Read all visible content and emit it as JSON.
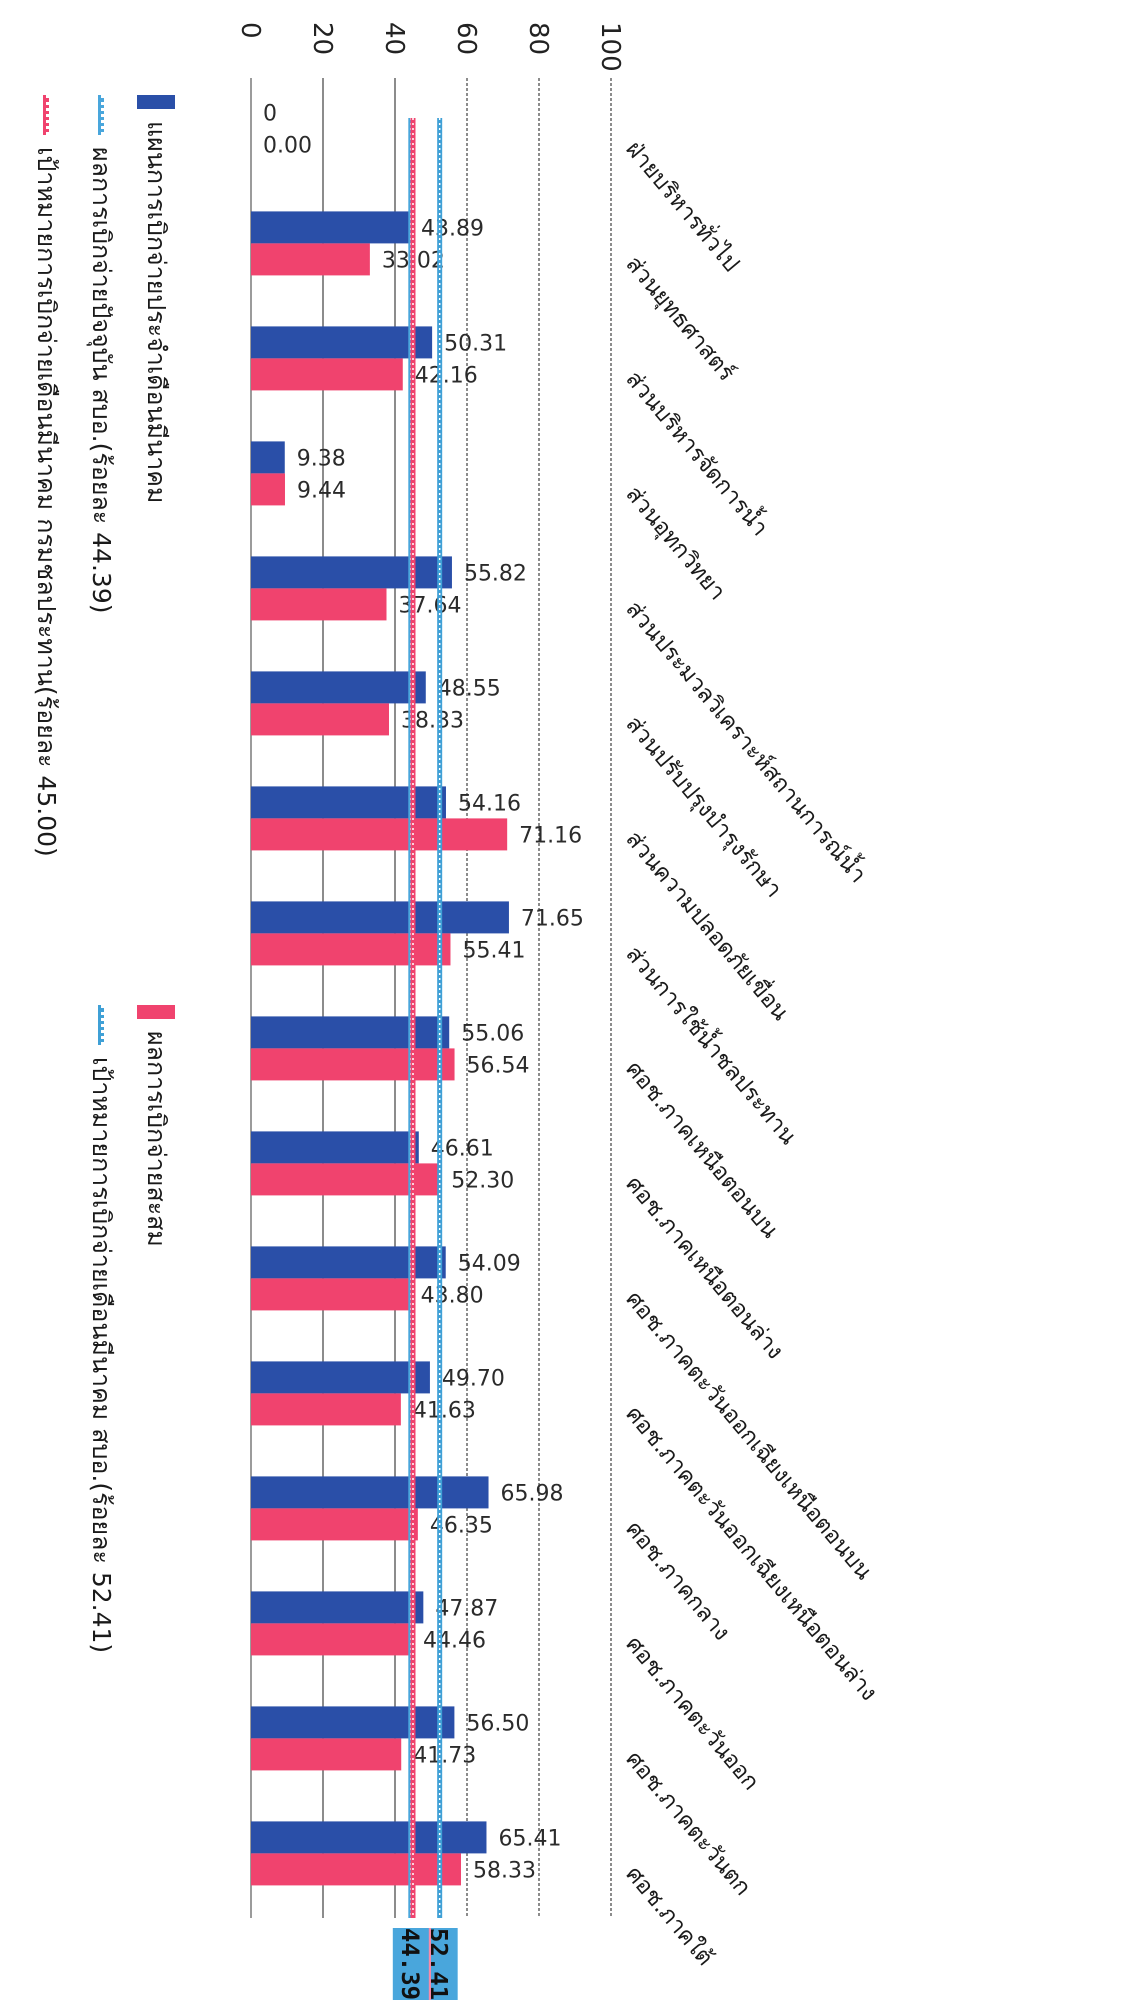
{
  "chart_data": {
    "type": "bar",
    "orientation": "horizontal",
    "categories": [
      "ฝ่ายบริหารทั่วไป",
      "ส่วนยุทธศาสตร์",
      "ส่วนบริหารจัดการน้ำ",
      "ส่วนอุทกวิทยา",
      "ส่วนประมวลวิเคราะห์สถานการณ์น้ำ",
      "ส่วนปรับปรุงบำรุงรักษา",
      "ส่วนความปลอดภัยเขื่อน",
      "ส่วนการใช้น้ำชลประทาน",
      "ศอช.ภาคเหนือตอนบน",
      "ศอช.ภาคเหนือตอนล่าง",
      "ศอช.ภาคตะวันออกเฉียงเหนือตอนบน",
      "ศอช.ภาคตะวันออกเฉียงเหนือตอนล่าง",
      "ศอช.ภาคกลาง",
      "ศอช.ภาคตะวันออก",
      "ศอช.ภาคตะวันตก",
      "ศอช.ภาคใต้"
    ],
    "series": [
      {
        "name": "แผนการเบิกจ่ายประจำเดือนมีนาคม",
        "color": "#2a4fa8",
        "values": [
          0,
          43.89,
          50.31,
          9.38,
          55.82,
          48.55,
          54.16,
          71.65,
          55.06,
          46.61,
          54.09,
          49.7,
          65.98,
          47.87,
          56.5,
          65.41
        ],
        "labels": [
          "0",
          "43.89",
          "50.31",
          "9.38",
          "55.82",
          "48.55",
          "54.16",
          "71.65",
          "55.06",
          "46.61",
          "54.09",
          "49.70",
          "65.98",
          "47.87",
          "56.50",
          "65.41"
        ]
      },
      {
        "name": "ผลการเบิกจ่ายสะสม",
        "color": "#f0436e",
        "values": [
          0,
          33.02,
          42.16,
          9.44,
          37.64,
          38.33,
          71.16,
          55.41,
          56.54,
          52.3,
          43.8,
          41.63,
          46.35,
          44.46,
          41.73,
          58.33
        ],
        "labels": [
          "0.00",
          "33.02",
          "42.16",
          "9.44",
          "37.64",
          "38.33",
          "71.16",
          "55.41",
          "56.54",
          "52.30",
          "43.80",
          "41.63",
          "46.35",
          "44.46",
          "41.73",
          "58.33"
        ]
      }
    ],
    "reference_lines": [
      {
        "name": "ผลการเบิกจ่ายปัจจุบัน สบอ.(ร้อยละ 44.39)",
        "value": 44.39,
        "label": "44.39",
        "color": "#49a6dc",
        "box_color": "#49a6dc"
      },
      {
        "name": "เป้าหมายการเบิกจ่ายเดือนมีนาคม สบอ.(ร้อยละ 52.41)",
        "value": 52.41,
        "label": "52.41",
        "color": "#3fa0d6",
        "box_color": "#49a6dc"
      },
      {
        "name": "เป้าหมายการเบิกจ่ายเดือนมีนาคม กรมชลประทาน(ร้อยละ 45.00)",
        "value": 45.0,
        "label": "45.00",
        "color": "#f0436e",
        "box_color": "#f58aa8"
      }
    ],
    "axis": {
      "xlim": [
        0,
        100
      ],
      "ticks": [
        "0",
        "20",
        "40",
        "60",
        "80",
        "100"
      ],
      "grid": true
    },
    "legend_position": "bottom"
  }
}
